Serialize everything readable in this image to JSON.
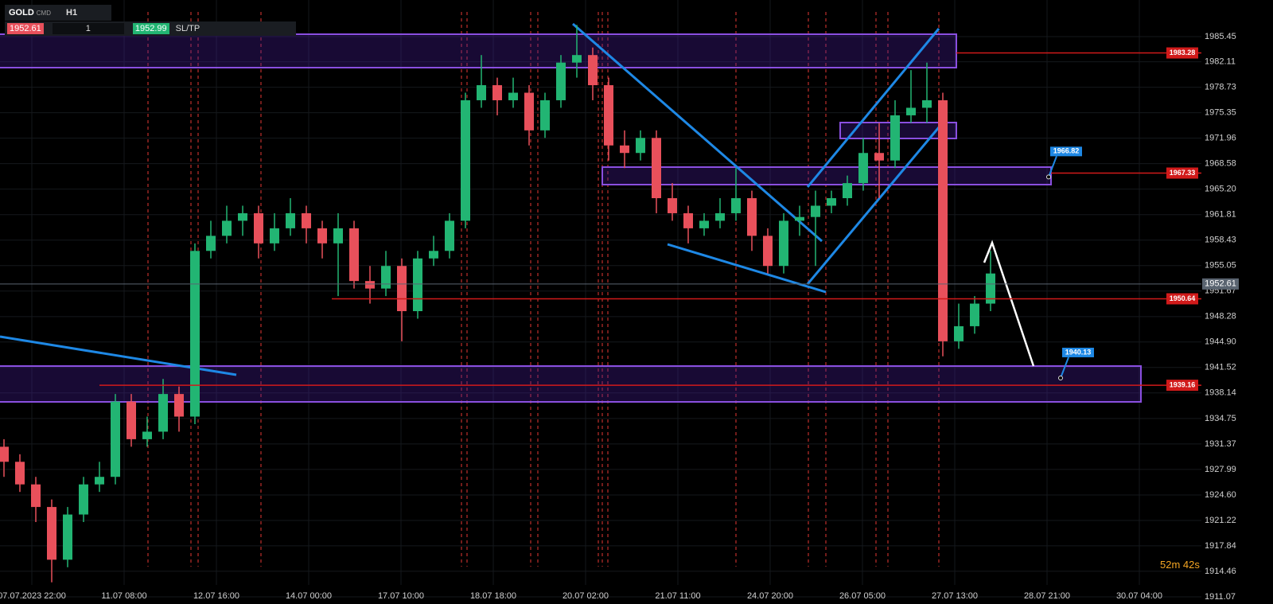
{
  "toolbar": {
    "symbol": "GOLD",
    "symbol_type": "CMD",
    "timeframe": "H1",
    "bid": "1952.61",
    "lot": "1",
    "ask": "1952.99",
    "sltp": "SL/TP"
  },
  "countdown": "52m 42s",
  "chart_data": {
    "type": "candlestick",
    "open": [
      1931,
      1929,
      1926,
      1923,
      1916,
      1922,
      1926,
      1927,
      1937,
      1932,
      1933,
      1938,
      1935,
      1957,
      1959,
      1961,
      1962,
      1958,
      1960,
      1962,
      1960,
      1958,
      1960,
      1953,
      1952,
      1955,
      1949,
      1956,
      1957,
      1961,
      1977,
      1979,
      1977,
      1978,
      1973,
      1977,
      1982,
      1983,
      1979,
      1971,
      1970,
      1972,
      1964,
      1962,
      1960,
      1961,
      1962,
      1964,
      1959,
      1955,
      1961,
      1961.5,
      1963,
      1964,
      1966,
      1970,
      1969,
      1975,
      1976,
      1977,
      1945,
      1947,
      1950
    ],
    "high": [
      1932,
      1930,
      1927,
      1924,
      1923,
      1927,
      1929,
      1938,
      1938,
      1935,
      1940,
      1939,
      1958,
      1961,
      1963,
      1963,
      1963,
      1962,
      1964,
      1963,
      1961,
      1962,
      1961,
      1955,
      1957,
      1956,
      1957,
      1959,
      1962,
      1978,
      1983,
      1980,
      1980,
      1979,
      1978,
      1983,
      1987,
      1984,
      1980,
      1973,
      1973,
      1973,
      1966,
      1963,
      1962,
      1964,
      1968,
      1965,
      1960,
      1962,
      1963,
      1965,
      1965,
      1967,
      1972,
      1974,
      1977,
      1981,
      1982,
      1978,
      1950,
      1951,
      1957
    ],
    "low": [
      1927,
      1925,
      1921,
      1913,
      1915,
      1921,
      1925,
      1926,
      1931,
      1931,
      1932,
      1933,
      1934,
      1956,
      1958,
      1959,
      1956,
      1957,
      1959,
      1958,
      1956,
      1951,
      1952,
      1950,
      1951,
      1945,
      1948,
      1955,
      1956,
      1960,
      1976,
      1975,
      1976,
      1971,
      1972,
      1976,
      1980,
      1977,
      1969,
      1968,
      1969,
      1962,
      1961,
      1958,
      1959,
      1960,
      1961,
      1957,
      1954,
      1954,
      1959,
      1955,
      1962,
      1963,
      1965,
      1964,
      1968,
      1974,
      1974,
      1943,
      1944,
      1946,
      1949
    ],
    "close": [
      1929,
      1926,
      1923,
      1916,
      1922,
      1926,
      1927,
      1937,
      1932,
      1933,
      1938,
      1935,
      1957,
      1959,
      1961,
      1962,
      1958,
      1960,
      1962,
      1960,
      1958,
      1960,
      1953,
      1952,
      1955,
      1949,
      1956,
      1957,
      1961,
      1977,
      1979,
      1977,
      1978,
      1973,
      1977,
      1982,
      1983,
      1979,
      1971,
      1970,
      1972,
      1964,
      1962,
      1960,
      1961,
      1962,
      1964,
      1959,
      1955,
      1961,
      1961.5,
      1963,
      1964,
      1966,
      1970,
      1969,
      1975,
      1976,
      1977,
      1945,
      1947,
      1950,
      1954
    ],
    "up_color": "#22b573",
    "down_color": "#e8505b",
    "ylim": [
      1910.12,
      1990.31
    ],
    "yticks": [
      1985.45,
      1982.11,
      1978.73,
      1975.35,
      1971.96,
      1968.58,
      {
        "value": 1965.2,
        "label": "1965.20"
      },
      1961.81,
      1958.43,
      1955.05,
      1951.67,
      1948.28,
      {
        "value": 1944.9,
        "label": "1944.90"
      },
      1941.52,
      1938.14,
      1934.75,
      1931.37,
      1927.99,
      {
        "value": 1924.6,
        "label": "1924.60"
      },
      1921.22,
      1917.84,
      1914.46,
      1911.07
    ],
    "xlim": [
      -0.25,
      75.25
    ],
    "xticks": [
      {
        "value": 1.75,
        "label": "07.07.2023 22:00"
      },
      {
        "value": 7.55,
        "label": "11.07 08:00"
      },
      {
        "value": 13.35,
        "label": "12.07 16:00"
      },
      {
        "value": 19.15,
        "label": "14.07 00:00"
      },
      {
        "value": 24.95,
        "label": "17.07 10:00"
      },
      {
        "value": 30.75,
        "label": "18.07 18:00"
      },
      {
        "value": 36.55,
        "label": "20.07 02:00"
      },
      {
        "value": 42.35,
        "label": "21.07 11:00"
      },
      {
        "value": 48.15,
        "label": "24.07 20:00"
      },
      {
        "value": 53.95,
        "label": "26.07 05:00"
      },
      {
        "value": 59.75,
        "label": "27.07 13:00"
      },
      {
        "value": 65.55,
        "label": "28.07 21:00"
      },
      {
        "value": 71.35,
        "label": "30.07 04:00"
      }
    ],
    "price_lines": [
      {
        "value": 1983.28,
        "color": "#d11a1a"
      },
      {
        "value": 1967.33,
        "color": "#d11a1a"
      },
      {
        "value": 1950.64,
        "color": "#d11a1a"
      },
      {
        "value": 1939.16,
        "color": "#d11a1a"
      }
    ],
    "current_price": {
      "value": 1952.61,
      "color": "#5a6470"
    },
    "targets": [
      1966.82,
      1940.13
    ],
    "target_color": "#1e88e5"
  }
}
